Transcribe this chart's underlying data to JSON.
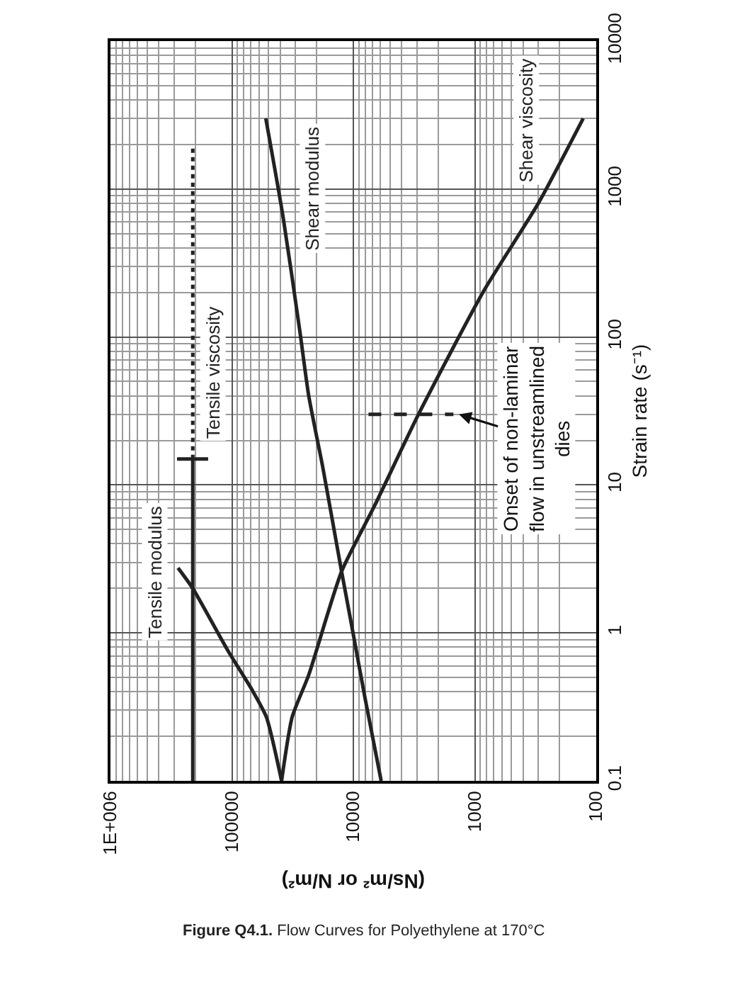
{
  "chart_data": {
    "type": "line",
    "title": "Figure Q4.1. Flow Curves for Polyethylene at 170°C",
    "xlabel": "(Ns/m² or N/m²)",
    "ylabel": "Strain rate (s⁻¹)",
    "series": [
      {
        "name": "Tensile modulus",
        "color": "#222222",
        "x": [
          39000,
          52000,
          68000,
          107000,
          210000,
          278000
        ],
        "values": [
          0.1,
          0.27,
          0.41,
          0.75,
          2.0,
          2.75
        ]
      },
      {
        "name": "Tensile viscosity",
        "color": "#222222",
        "x": [
          210000,
          210000,
          null,
          283000,
          157000
        ],
        "values": [
          0.1,
          15,
          null,
          15,
          15
        ]
      },
      {
        "color": "#222222",
        "x": [
          210000,
          210000
        ],
        "values": [
          15,
          2000
        ],
        "line_style": "dotted"
      },
      {
        "name": "Shear modulus",
        "color": "#222222",
        "x": [
          5900,
          8000,
          10400,
          12500,
          17800,
          23300,
          27600,
          37800,
          52600
        ],
        "values": [
          0.1,
          0.36,
          1.16,
          2.6,
          13,
          40,
          110,
          640,
          3000
        ]
      },
      {
        "name": "Shear viscosity",
        "color": "#222222",
        "x": [
          39000,
          31900,
          23300,
          12500,
          6650,
          2970,
          840,
          300,
          128
        ],
        "values": [
          0.1,
          0.27,
          0.52,
          2.6,
          7.3,
          29,
          206,
          800,
          3000
        ]
      },
      {
        "color": "#222222",
        "x": [
          7500,
          1500
        ],
        "values": [
          30,
          30
        ],
        "line_style": "dashed"
      }
    ],
    "annotations": [
      {
        "text": "Onset of non-laminar\nflow in unstreamlined\ndies",
        "x": 1350,
        "y": 30
      }
    ],
    "xlim": [
      1000000,
      100
    ],
    "ylim": [
      0.1,
      10000
    ],
    "xticks": [
      {
        "value": 1000000,
        "label": "1E+006"
      },
      100000,
      10000,
      1000,
      100
    ],
    "yticks": [
      0.1,
      1,
      10,
      100,
      1000,
      10000
    ],
    "log": "xy",
    "grid": true,
    "line_style": "solid"
  }
}
